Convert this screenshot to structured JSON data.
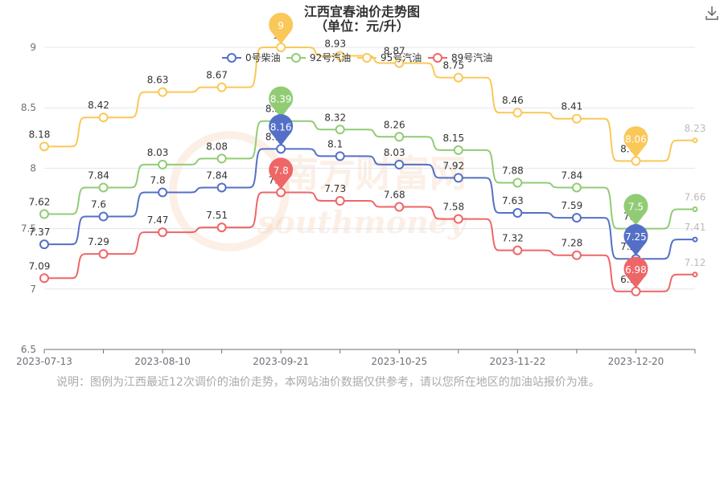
{
  "chart_data": {
    "type": "line",
    "title": "江西宜春油价走势图",
    "subtitle": "（单位：元/升）",
    "x": [
      "2023-07-13",
      "2023-07-27",
      "2023-08-10",
      "2023-08-24",
      "2023-09-21",
      "2023-10-11",
      "2023-10-25",
      "2023-11-08",
      "2023-11-22",
      "2023-12-06",
      "2023-12-20",
      "2024-01-03"
    ],
    "xticks": [
      "2023-07-13",
      "2023-08-10",
      "2023-09-21",
      "2023-10-25",
      "2023-11-22",
      "2023-12-20"
    ],
    "yticks": [
      6.5,
      7,
      7.5,
      8,
      8.5,
      9
    ],
    "ylim": [
      6.5,
      9
    ],
    "grid": true,
    "legend_position": "top-center",
    "series": [
      {
        "name": "0号柴油",
        "color": "#5470c6",
        "values": [
          7.37,
          7.6,
          7.8,
          7.84,
          8.16,
          8.1,
          8.03,
          7.92,
          7.63,
          7.59,
          7.25,
          7.41
        ],
        "labels": [
          "7.37",
          "7.6",
          "7.8",
          "7.84",
          "8.16",
          "8.1",
          "8.03",
          "7.92",
          "7.63",
          "7.59",
          "7.25",
          "7.41"
        ]
      },
      {
        "name": "92号汽油",
        "color": "#91cc75",
        "values": [
          7.62,
          7.84,
          8.03,
          8.08,
          8.39,
          8.32,
          8.26,
          8.15,
          7.88,
          7.84,
          7.5,
          7.66
        ],
        "labels": [
          "7.62",
          "7.84",
          "8.03",
          "8.08",
          "8.39",
          "8.32",
          "8.26",
          "8.15",
          "7.88",
          "7.84",
          "7.5",
          "7.66"
        ]
      },
      {
        "name": "95号汽油",
        "color": "#fac858",
        "values": [
          8.18,
          8.42,
          8.63,
          8.67,
          9,
          8.93,
          8.87,
          8.75,
          8.46,
          8.41,
          8.06,
          8.23
        ],
        "labels": [
          "8.18",
          "8.42",
          "8.63",
          "8.67",
          "9",
          "8.93",
          "8.87",
          "8.75",
          "8.46",
          "8.41",
          "8.06",
          "8.23"
        ]
      },
      {
        "name": "89号汽油",
        "color": "#ee6666",
        "values": [
          7.09,
          7.29,
          7.47,
          7.51,
          7.8,
          7.73,
          7.68,
          7.58,
          7.32,
          7.28,
          6.98,
          7.12
        ],
        "labels": [
          "7.09",
          "7.29",
          "7.47",
          "7.51",
          "7.8",
          "7.73",
          "7.68",
          "7.58",
          "7.32",
          "7.28",
          "6.98",
          "7.12"
        ]
      }
    ],
    "markers": [
      {
        "series": 2,
        "index": 4,
        "label": "9"
      },
      {
        "series": 1,
        "index": 4,
        "label": "8.39"
      },
      {
        "series": 0,
        "index": 4,
        "label": "8.16"
      },
      {
        "series": 3,
        "index": 4,
        "label": "7.8"
      },
      {
        "series": 2,
        "index": 10,
        "label": "8.06"
      },
      {
        "series": 1,
        "index": 10,
        "label": "7.5"
      },
      {
        "series": 0,
        "index": 10,
        "label": "7.25"
      },
      {
        "series": 3,
        "index": 10,
        "label": "6.98"
      }
    ]
  },
  "footnote": "说明：图例为江西最近12次调价的油价走势，本网站油价数据仅供参考，请以您所在地区的加油站报价为准。",
  "watermark": {
    "cn": "南方财富网",
    "en": "southmoney"
  },
  "download_icon": "download-icon"
}
